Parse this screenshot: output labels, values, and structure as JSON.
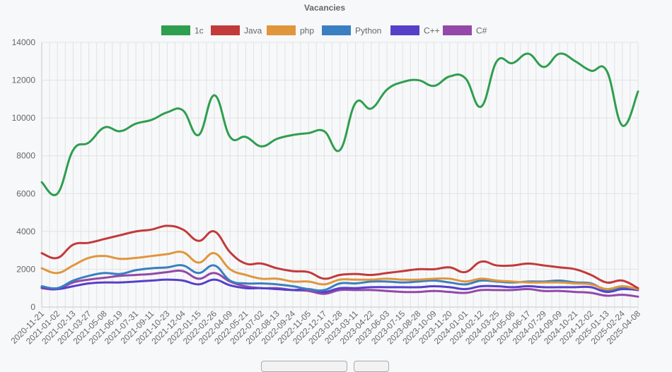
{
  "chart_data": {
    "type": "line",
    "title": "Vacancies",
    "ylim": [
      0,
      14000
    ],
    "yticks": [
      0,
      2000,
      4000,
      6000,
      8000,
      10000,
      12000,
      14000
    ],
    "grid": true,
    "legend_position": "top",
    "x": [
      "2020-11-21",
      "2021-01-02",
      "2021-02-13",
      "2021-03-27",
      "2021-05-08",
      "2021-06-19",
      "2021-07-31",
      "2021-09-11",
      "2021-10-23",
      "2021-12-04",
      "2022-01-15",
      "2022-02-26",
      "2022-04-09",
      "2022-05-21",
      "2022-07-02",
      "2022-08-13",
      "2022-09-24",
      "2022-11-05",
      "2022-12-17",
      "2023-01-28",
      "2023-03-11",
      "2023-04-22",
      "2023-06-03",
      "2023-07-15",
      "2023-08-28",
      "2023-10-09",
      "2023-11-20",
      "2024-01-01",
      "2024-02-12",
      "2024-03-25",
      "2024-05-06",
      "2024-06-17",
      "2024-07-29",
      "2024-09-09",
      "2024-10-21",
      "2024-12-02",
      "2025-01-13",
      "2025-02-24",
      "2025-04-08"
    ],
    "series": [
      {
        "name": "1c",
        "color": "#2e9e4f",
        "values": [
          6600,
          6000,
          8300,
          8700,
          9500,
          9300,
          9700,
          9900,
          10300,
          10400,
          9100,
          11200,
          9000,
          9000,
          8500,
          8900,
          9100,
          9200,
          9300,
          8300,
          10800,
          10500,
          11500,
          11900,
          12000,
          11700,
          12200,
          12100,
          10600,
          13000,
          12900,
          13400,
          12700,
          13400,
          13000,
          12500,
          12500,
          9600,
          11400
        ]
      },
      {
        "name": "Java",
        "color": "#c23a3a",
        "values": [
          2850,
          2600,
          3300,
          3400,
          3600,
          3800,
          4000,
          4100,
          4300,
          4100,
          3500,
          4000,
          2900,
          2300,
          2300,
          2050,
          1900,
          1850,
          1500,
          1700,
          1750,
          1700,
          1800,
          1900,
          2000,
          2000,
          2100,
          1850,
          2400,
          2200,
          2200,
          2300,
          2200,
          2100,
          2000,
          1700,
          1300,
          1400,
          1000
        ]
      },
      {
        "name": "php",
        "color": "#e0963b",
        "values": [
          2050,
          1800,
          2200,
          2600,
          2700,
          2550,
          2600,
          2700,
          2800,
          2900,
          2350,
          2850,
          2000,
          1700,
          1500,
          1500,
          1350,
          1350,
          1200,
          1450,
          1450,
          1450,
          1500,
          1450,
          1450,
          1500,
          1500,
          1350,
          1500,
          1400,
          1350,
          1300,
          1300,
          1300,
          1250,
          1200,
          950,
          1100,
          950
        ]
      },
      {
        "name": "Python",
        "color": "#3a7fc1",
        "values": [
          1100,
          1000,
          1400,
          1650,
          1800,
          1750,
          1950,
          2050,
          2100,
          2200,
          1800,
          2200,
          1400,
          1250,
          1250,
          1200,
          1100,
          950,
          900,
          1250,
          1250,
          1350,
          1350,
          1300,
          1350,
          1400,
          1300,
          1200,
          1400,
          1350,
          1300,
          1350,
          1350,
          1400,
          1300,
          1250,
          900,
          1050,
          950
        ]
      },
      {
        "name": "C++",
        "color": "#5640c8",
        "values": [
          1050,
          950,
          1100,
          1250,
          1300,
          1300,
          1350,
          1400,
          1450,
          1400,
          1200,
          1450,
          1150,
          1000,
          1000,
          950,
          900,
          950,
          800,
          1000,
          1000,
          1050,
          1050,
          1050,
          1050,
          1100,
          1050,
          950,
          1100,
          1100,
          1050,
          1100,
          1050,
          1050,
          1050,
          1050,
          800,
          950,
          900
        ]
      },
      {
        "name": "C#",
        "color": "#9448a8",
        "values": [
          1000,
          950,
          1300,
          1450,
          1550,
          1650,
          1700,
          1750,
          1850,
          1900,
          1500,
          1800,
          1350,
          1100,
          1000,
          1000,
          900,
          850,
          700,
          900,
          900,
          900,
          850,
          800,
          800,
          850,
          800,
          750,
          900,
          900,
          900,
          950,
          850,
          850,
          800,
          750,
          600,
          650,
          550
        ]
      }
    ]
  }
}
